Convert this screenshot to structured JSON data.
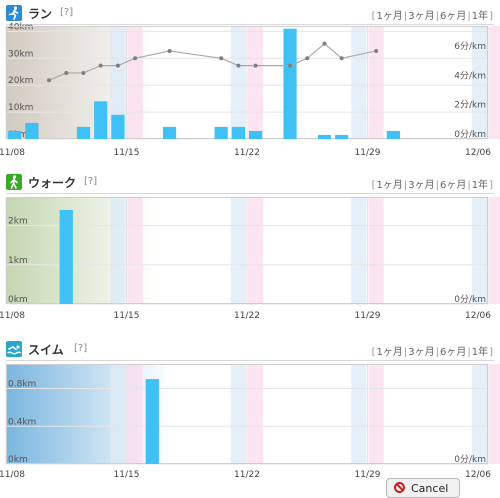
{
  "panels": [
    {
      "id": "run",
      "title": "ラン",
      "help": "[?]",
      "ranges": [
        "1ヶ月",
        "3ヶ月",
        "6ヶ月",
        "1年"
      ],
      "icon_color": "#2b8bd6",
      "chart_data": {
        "type": "bar",
        "x_dates": [
          "11/08",
          "11/09",
          "11/10",
          "11/11",
          "11/12",
          "11/13",
          "11/14",
          "11/15",
          "11/16",
          "11/17",
          "11/18",
          "11/19",
          "11/20",
          "11/21",
          "11/22",
          "11/23",
          "11/24",
          "11/25",
          "11/26",
          "11/27",
          "11/28",
          "11/29",
          "11/30",
          "12/01",
          "12/02",
          "12/03",
          "12/04",
          "12/05",
          "12/06"
        ],
        "x_tick_labels": [
          "11/08",
          "11/15",
          "11/22",
          "11/29",
          "12/06"
        ],
        "series": [
          {
            "axis": "left",
            "type": "bar",
            "values": [
              3,
              6,
              0,
              0,
              4.5,
              14,
              9,
              0,
              0,
              4.5,
              0,
              0,
              4.5,
              4.5,
              3,
              0,
              41,
              0,
              1.5,
              1.5,
              0,
              0,
              3,
              0,
              0,
              0,
              0,
              0,
              0
            ]
          },
          {
            "axis": "right",
            "type": "line",
            "values": [
              null,
              null,
              4,
              4.5,
              4.5,
              5,
              5,
              5.5,
              null,
              6,
              null,
              null,
              5.5,
              5,
              5,
              null,
              5,
              5.5,
              6.5,
              5.5,
              null,
              6,
              null,
              null,
              null,
              null,
              null,
              null,
              null
            ]
          }
        ],
        "y_left_ticks": [
          "0km",
          "10km",
          "20km",
          "30km",
          "40km"
        ],
        "y_left_range": [
          0,
          42
        ],
        "y_right_ticks": [
          "0分/km",
          "2分/km",
          "4分/km",
          "6分/km"
        ],
        "y_right_range": [
          0,
          7.7
        ],
        "grid": true
      }
    },
    {
      "id": "walk",
      "title": "ウォーク",
      "help": "[?]",
      "ranges": [
        "1ヶ月",
        "3ヶ月",
        "6ヶ月",
        "1年"
      ],
      "icon_color": "#3aa829",
      "chart_data": {
        "type": "bar",
        "x_dates": [
          "11/08",
          "11/09",
          "11/10",
          "11/11",
          "11/12",
          "11/13",
          "11/14",
          "11/15",
          "11/16",
          "11/17",
          "11/18",
          "11/19",
          "11/20",
          "11/21",
          "11/22",
          "11/23",
          "11/24",
          "11/25",
          "11/26",
          "11/27",
          "11/28",
          "11/29",
          "11/30",
          "12/01",
          "12/02",
          "12/03",
          "12/04",
          "12/05",
          "12/06"
        ],
        "x_tick_labels": [
          "11/08",
          "11/15",
          "11/22",
          "11/29",
          "12/06"
        ],
        "series": [
          {
            "axis": "left",
            "type": "bar",
            "values": [
              0,
              0,
              0,
              2.4,
              0,
              0,
              0,
              0,
              0,
              0,
              0,
              0,
              0,
              0,
              0,
              0,
              0,
              0,
              0,
              0,
              0,
              0,
              0,
              0,
              0,
              0,
              0,
              0,
              0
            ]
          }
        ],
        "y_left_ticks": [
          "0km",
          "1km",
          "2km"
        ],
        "y_left_range": [
          0,
          2.73
        ],
        "y_right_ticks": [
          "0分/km"
        ],
        "grid": true
      }
    },
    {
      "id": "swim",
      "title": "スイム",
      "help": "[?]",
      "ranges": [
        "1ヶ月",
        "3ヶ月",
        "6ヶ月",
        "1年"
      ],
      "icon_color": "#28a7c9",
      "chart_data": {
        "type": "bar",
        "x_dates": [
          "11/08",
          "11/09",
          "11/10",
          "11/11",
          "11/12",
          "11/13",
          "11/14",
          "11/15",
          "11/16",
          "11/17",
          "11/18",
          "11/19",
          "11/20",
          "11/21",
          "11/22",
          "11/23",
          "11/24",
          "11/25",
          "11/26",
          "11/27",
          "11/28",
          "11/29",
          "11/30",
          "12/01",
          "12/02",
          "12/03",
          "12/04",
          "12/05",
          "12/06"
        ],
        "x_tick_labels": [
          "11/08",
          "11/15",
          "11/22",
          "11/29",
          "12/06"
        ],
        "series": [
          {
            "axis": "left",
            "type": "bar",
            "values": [
              0,
              0,
              0,
              0,
              0,
              0,
              0,
              0,
              0.9,
              0,
              0,
              0,
              0,
              0,
              0,
              0,
              0,
              0,
              0,
              0,
              0,
              0,
              0,
              0,
              0,
              0,
              0,
              0,
              0
            ]
          }
        ],
        "y_left_ticks": [
          "0km",
          "0.4km",
          "0.8km"
        ],
        "y_left_range": [
          0,
          1.06
        ],
        "y_right_ticks": [
          "0分/km"
        ],
        "grid": true
      }
    }
  ],
  "cancel_button": {
    "label": "Cancel"
  },
  "colors": {
    "bar": "#3fc1f5",
    "line": "#a9a9a9",
    "dot": "#7f7f7f",
    "grid": "#e6e6e6",
    "saturday_band": "#dbeaf7",
    "sunday_band": "#fbdcec"
  }
}
